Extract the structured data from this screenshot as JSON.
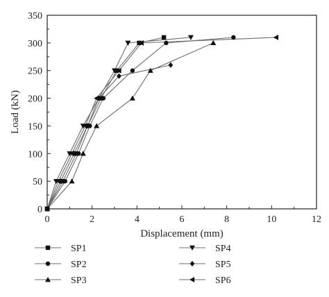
{
  "chart_data": {
    "type": "line",
    "title": "",
    "xlabel": "Displacement (mm)",
    "ylabel": "Load (kN)",
    "xlim": [
      0,
      12
    ],
    "ylim": [
      0,
      350
    ],
    "xticks": [
      "0",
      "2",
      "4",
      "6",
      "8",
      "10",
      "12"
    ],
    "yticks": [
      "0",
      "50",
      "100",
      "150",
      "200",
      "250",
      "300",
      "350"
    ],
    "grid": false,
    "legend_position": "bottom",
    "line_color": "#6b6b6b",
    "marker_color": "#111111",
    "series": [
      {
        "name": "SP1",
        "marker": "square",
        "x": [
          0,
          0.7,
          1.3,
          1.8,
          2.4,
          3.1,
          4.1,
          5.2
        ],
        "y": [
          0,
          50,
          100,
          150,
          200,
          250,
          300,
          310
        ]
      },
      {
        "name": "SP2",
        "marker": "circle",
        "x": [
          0,
          0.8,
          1.4,
          1.9,
          2.5,
          3.8,
          5.3,
          8.3
        ],
        "y": [
          0,
          50,
          100,
          150,
          200,
          250,
          300,
          310
        ]
      },
      {
        "name": "SP3",
        "marker": "triangle-up",
        "x": [
          0,
          1.1,
          1.6,
          2.2,
          3.8,
          4.6,
          7.4
        ],
        "y": [
          0,
          50,
          100,
          150,
          200,
          250,
          300
        ]
      },
      {
        "name": "SP4",
        "marker": "triangle-down",
        "x": [
          0,
          0.4,
          1.0,
          1.6,
          3.0,
          3.6,
          6.4
        ],
        "y": [
          0,
          50,
          100,
          150,
          250,
          300,
          310
        ]
      },
      {
        "name": "SP5",
        "marker": "diamond",
        "x": [
          0,
          0.6,
          1.2,
          1.8,
          2.3,
          3.2,
          5.5
        ],
        "y": [
          0,
          50,
          100,
          150,
          200,
          240,
          260
        ]
      },
      {
        "name": "SP6",
        "marker": "triangle-left",
        "x": [
          0,
          0.5,
          1.1,
          1.7,
          2.2,
          3.2,
          4.2,
          10.2
        ],
        "y": [
          0,
          50,
          100,
          150,
          200,
          250,
          300,
          310
        ]
      }
    ]
  }
}
